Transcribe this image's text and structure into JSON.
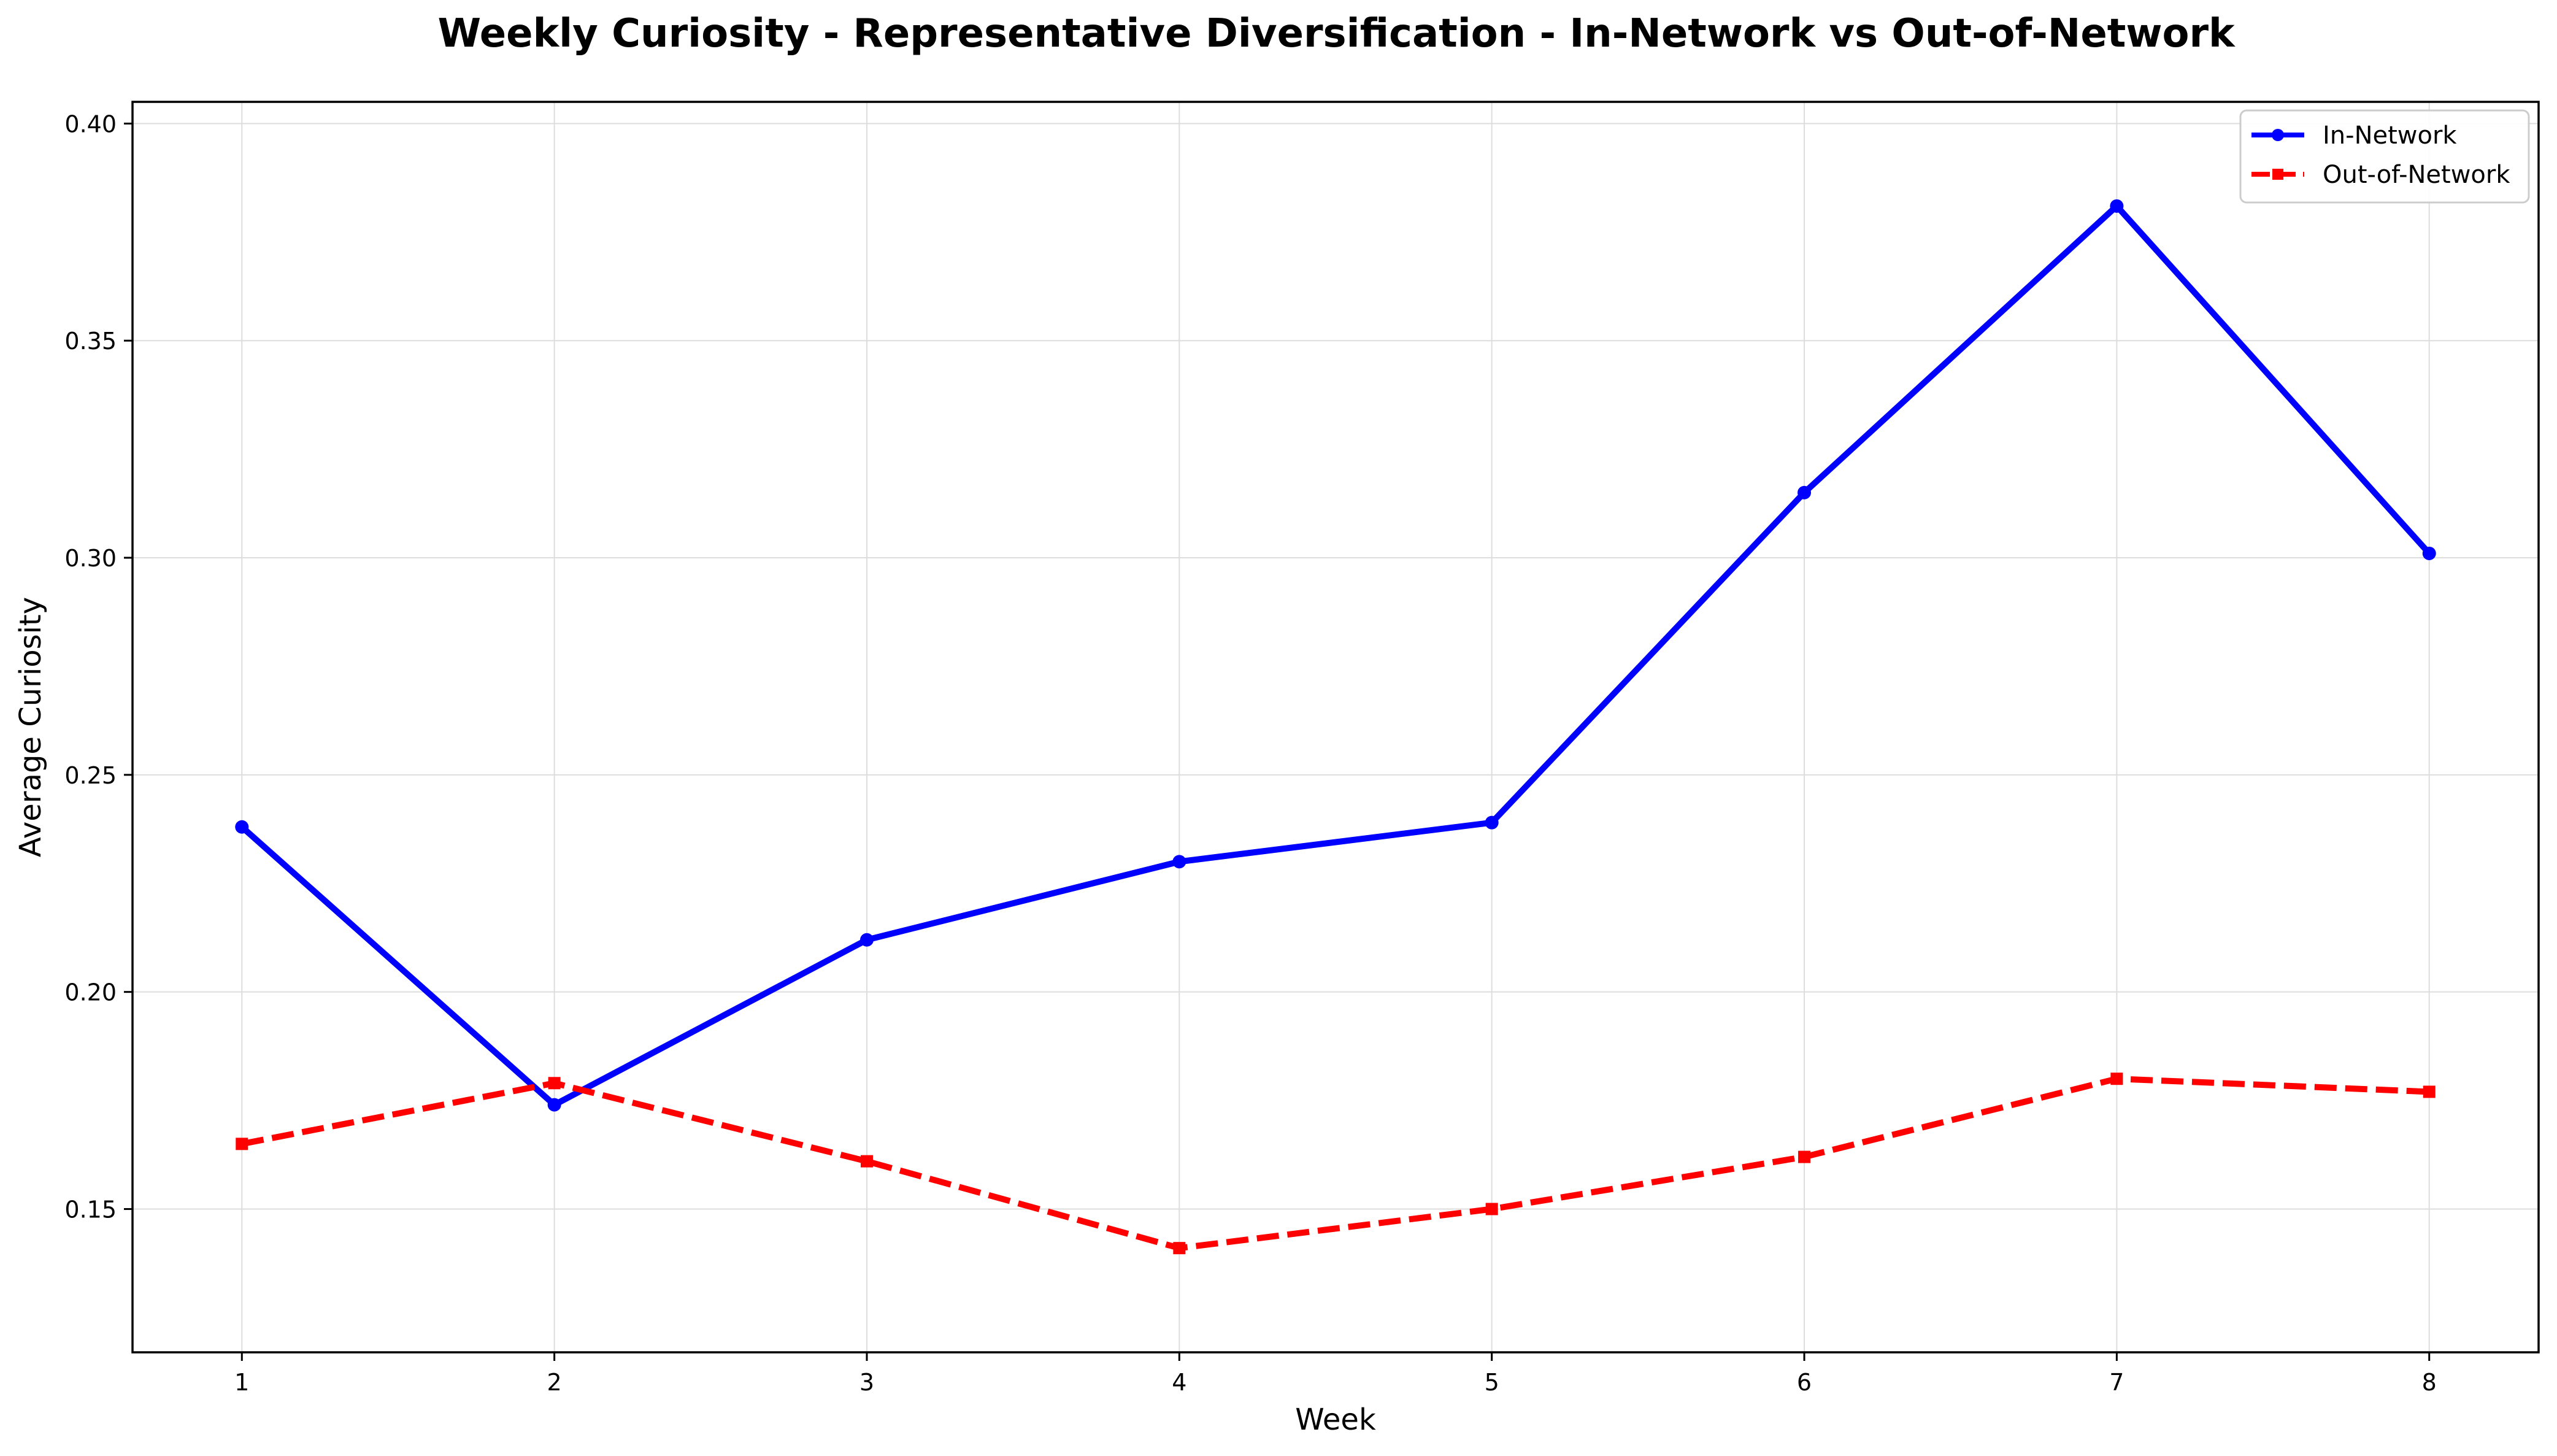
{
  "chart_data": {
    "type": "line",
    "title": "Weekly Curiosity - Representative Diversification - In-Network vs Out-of-Network",
    "xlabel": "Week",
    "ylabel": "Average Curiosity",
    "x": [
      1,
      2,
      3,
      4,
      5,
      6,
      7,
      8
    ],
    "xticks": [
      "1",
      "2",
      "3",
      "4",
      "5",
      "6",
      "7",
      "8"
    ],
    "yticks": [
      "0.15",
      "0.20",
      "0.25",
      "0.30",
      "0.35",
      "0.40"
    ],
    "xlim": [
      0.65,
      8.35
    ],
    "ylim": [
      0.117,
      0.405
    ],
    "grid": true,
    "legend_position": "top-right",
    "series": [
      {
        "name": "In-Network",
        "color": "#0000ff",
        "line_style": "solid",
        "marker": "circle",
        "values": [
          0.238,
          0.174,
          0.212,
          0.23,
          0.239,
          0.315,
          0.381,
          0.301
        ]
      },
      {
        "name": "Out-of-Network",
        "color": "#ff0000",
        "line_style": "dashed",
        "marker": "square",
        "values": [
          0.165,
          0.179,
          0.161,
          0.141,
          0.15,
          0.162,
          0.18,
          0.177
        ]
      }
    ]
  }
}
